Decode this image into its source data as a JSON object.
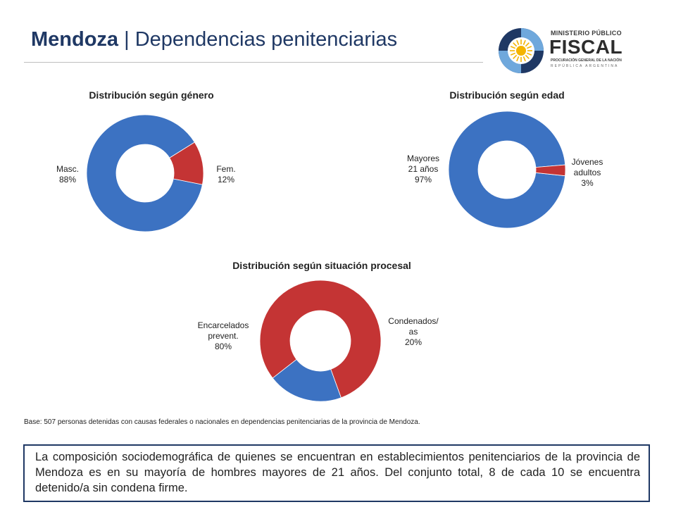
{
  "header": {
    "title_bold": "Mendoza",
    "title_rest": " | Dependencias penitenciarias"
  },
  "logo": {
    "line1": "MINISTERIO PÚBLICO",
    "line2": "FISCAL",
    "line3": "PROCURACIÓN GENERAL DE LA NACIÓN",
    "line4": "REPÚBLICA ARGENTINA",
    "icon": "sun-emblem-icon"
  },
  "colors": {
    "blue": "#3c72c2",
    "red": "#c43434",
    "title": "#1f3864"
  },
  "chart_data": [
    {
      "type": "pie",
      "title": "Distribución según género",
      "slices": [
        {
          "label": [
            "Masc.",
            "88%"
          ],
          "value": 88,
          "color": "#3c72c2"
        },
        {
          "label": [
            "Fem.",
            "12%"
          ],
          "value": 12,
          "color": "#c43434"
        }
      ]
    },
    {
      "type": "pie",
      "title": "Distribución según edad",
      "slices": [
        {
          "label": [
            "Mayores",
            "21 años",
            "97%"
          ],
          "value": 97,
          "color": "#3c72c2"
        },
        {
          "label": [
            "Jóvenes",
            "adultos",
            "3%"
          ],
          "value": 3,
          "color": "#c43434"
        }
      ]
    },
    {
      "type": "pie",
      "title": "Distribución según situación procesal",
      "slices": [
        {
          "label": [
            "Encarcelados",
            "prevent.",
            "80%"
          ],
          "value": 80,
          "color": "#c43434"
        },
        {
          "label": [
            "Condenados/",
            "as",
            "20%"
          ],
          "value": 20,
          "color": "#3c72c2"
        }
      ]
    }
  ],
  "footnote": "Base: 507 personas detenidas con causas federales o nacionales en dependencias penitenciarias de la provincia de Mendoza.",
  "summary": "La composición sociodemográfica de quienes se encuentran en establecimientos penitenciarios de la provincia de Mendoza es en su mayoría de hombres mayores de 21 años. Del conjunto total, 8 de cada 10 se encuentra detenido/a sin condena firme."
}
